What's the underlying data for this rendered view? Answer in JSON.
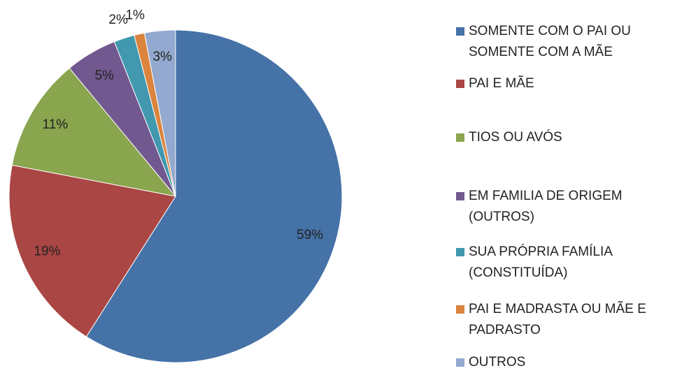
{
  "chart_data": {
    "type": "pie",
    "categories": [
      "SOMENTE COM O PAI OU SOMENTE COM A MÃE",
      "PAI E MÃE",
      "TIOS OU AVÓS",
      "EM FAMILIA DE ORIGEM (OUTROS)",
      "SUA PRÓPRIA FAMÍLIA (CONSTITUÍDA)",
      "PAI E MADRASTA OU MÃE E PADRASTO",
      "OUTROS"
    ],
    "values": [
      59,
      19,
      11,
      5,
      2,
      1,
      3
    ],
    "value_labels": [
      "59%",
      "19%",
      "11%",
      "5%",
      "2%",
      "1%",
      "3%"
    ],
    "colors": [
      "#4572a7",
      "#aa4643",
      "#89a54e",
      "#71588f",
      "#4198af",
      "#db843d",
      "#93a9cf"
    ],
    "legend": "right"
  }
}
